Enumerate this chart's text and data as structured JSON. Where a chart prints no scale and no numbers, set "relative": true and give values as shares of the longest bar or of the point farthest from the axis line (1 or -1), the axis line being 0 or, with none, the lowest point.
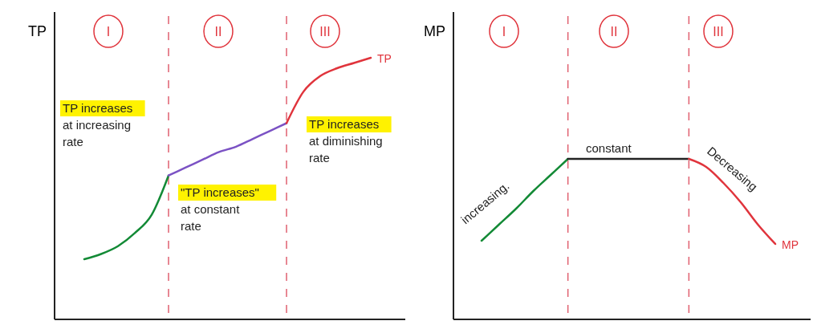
{
  "chart_data": [
    {
      "type": "line",
      "relative": true,
      "ylabel": "TP",
      "categories": [
        null,
        null,
        null,
        null,
        null,
        null,
        null,
        null,
        null,
        null,
        null,
        null,
        null,
        null,
        null,
        null,
        null,
        null
      ],
      "series": [
        {
          "color": "#138a36",
          "values": [
            0.23,
            0.25,
            0.28,
            0.33,
            0.4,
            0.55,
            null,
            null,
            null,
            null,
            null,
            null,
            null,
            null,
            null,
            null,
            null,
            null
          ]
        },
        {
          "color": "#7b52c4",
          "values": [
            null,
            null,
            null,
            null,
            null,
            0.55,
            0.58,
            0.61,
            0.64,
            0.66,
            0.69,
            0.72,
            0.75,
            null,
            null,
            null,
            null,
            null
          ]
        },
        {
          "name": "TP",
          "color": "#e0343c",
          "values": [
            null,
            null,
            null,
            null,
            null,
            null,
            null,
            null,
            null,
            null,
            null,
            null,
            0.75,
            0.87,
            0.93,
            0.96,
            0.98,
            1
          ]
        }
      ],
      "annotations": [
        "I",
        "II",
        "III",
        "TP increases\nat increasing\nrate",
        "\"TP increases\"\nat constant\nrate",
        "TP increases\nat diminishing\nrate"
      ]
    },
    {
      "type": "line",
      "relative": true,
      "ylabel": "MP",
      "categories": [
        null,
        null,
        null,
        null,
        null,
        null,
        null,
        null,
        null,
        null,
        null,
        null,
        null,
        null,
        null,
        null,
        null,
        null
      ],
      "series": [
        {
          "color": "#138a36",
          "values": [
            0.49,
            0.59,
            0.69,
            0.8,
            0.9,
            1,
            null,
            null,
            null,
            null,
            null,
            null,
            null,
            null,
            null,
            null,
            null,
            null
          ]
        },
        {
          "color": "#222222",
          "values": [
            null,
            null,
            null,
            null,
            null,
            1,
            1,
            1,
            1,
            1,
            1,
            1,
            1,
            null,
            null,
            null,
            null,
            null
          ]
        },
        {
          "name": "MP",
          "color": "#e0343c",
          "values": [
            null,
            null,
            null,
            null,
            null,
            null,
            null,
            null,
            null,
            null,
            null,
            null,
            1,
            0.95,
            0.85,
            0.73,
            0.59,
            0.47
          ]
        }
      ],
      "annotations": [
        "I",
        "II",
        "III",
        "increasing.",
        "constant",
        "Decreasing"
      ]
    }
  ]
}
